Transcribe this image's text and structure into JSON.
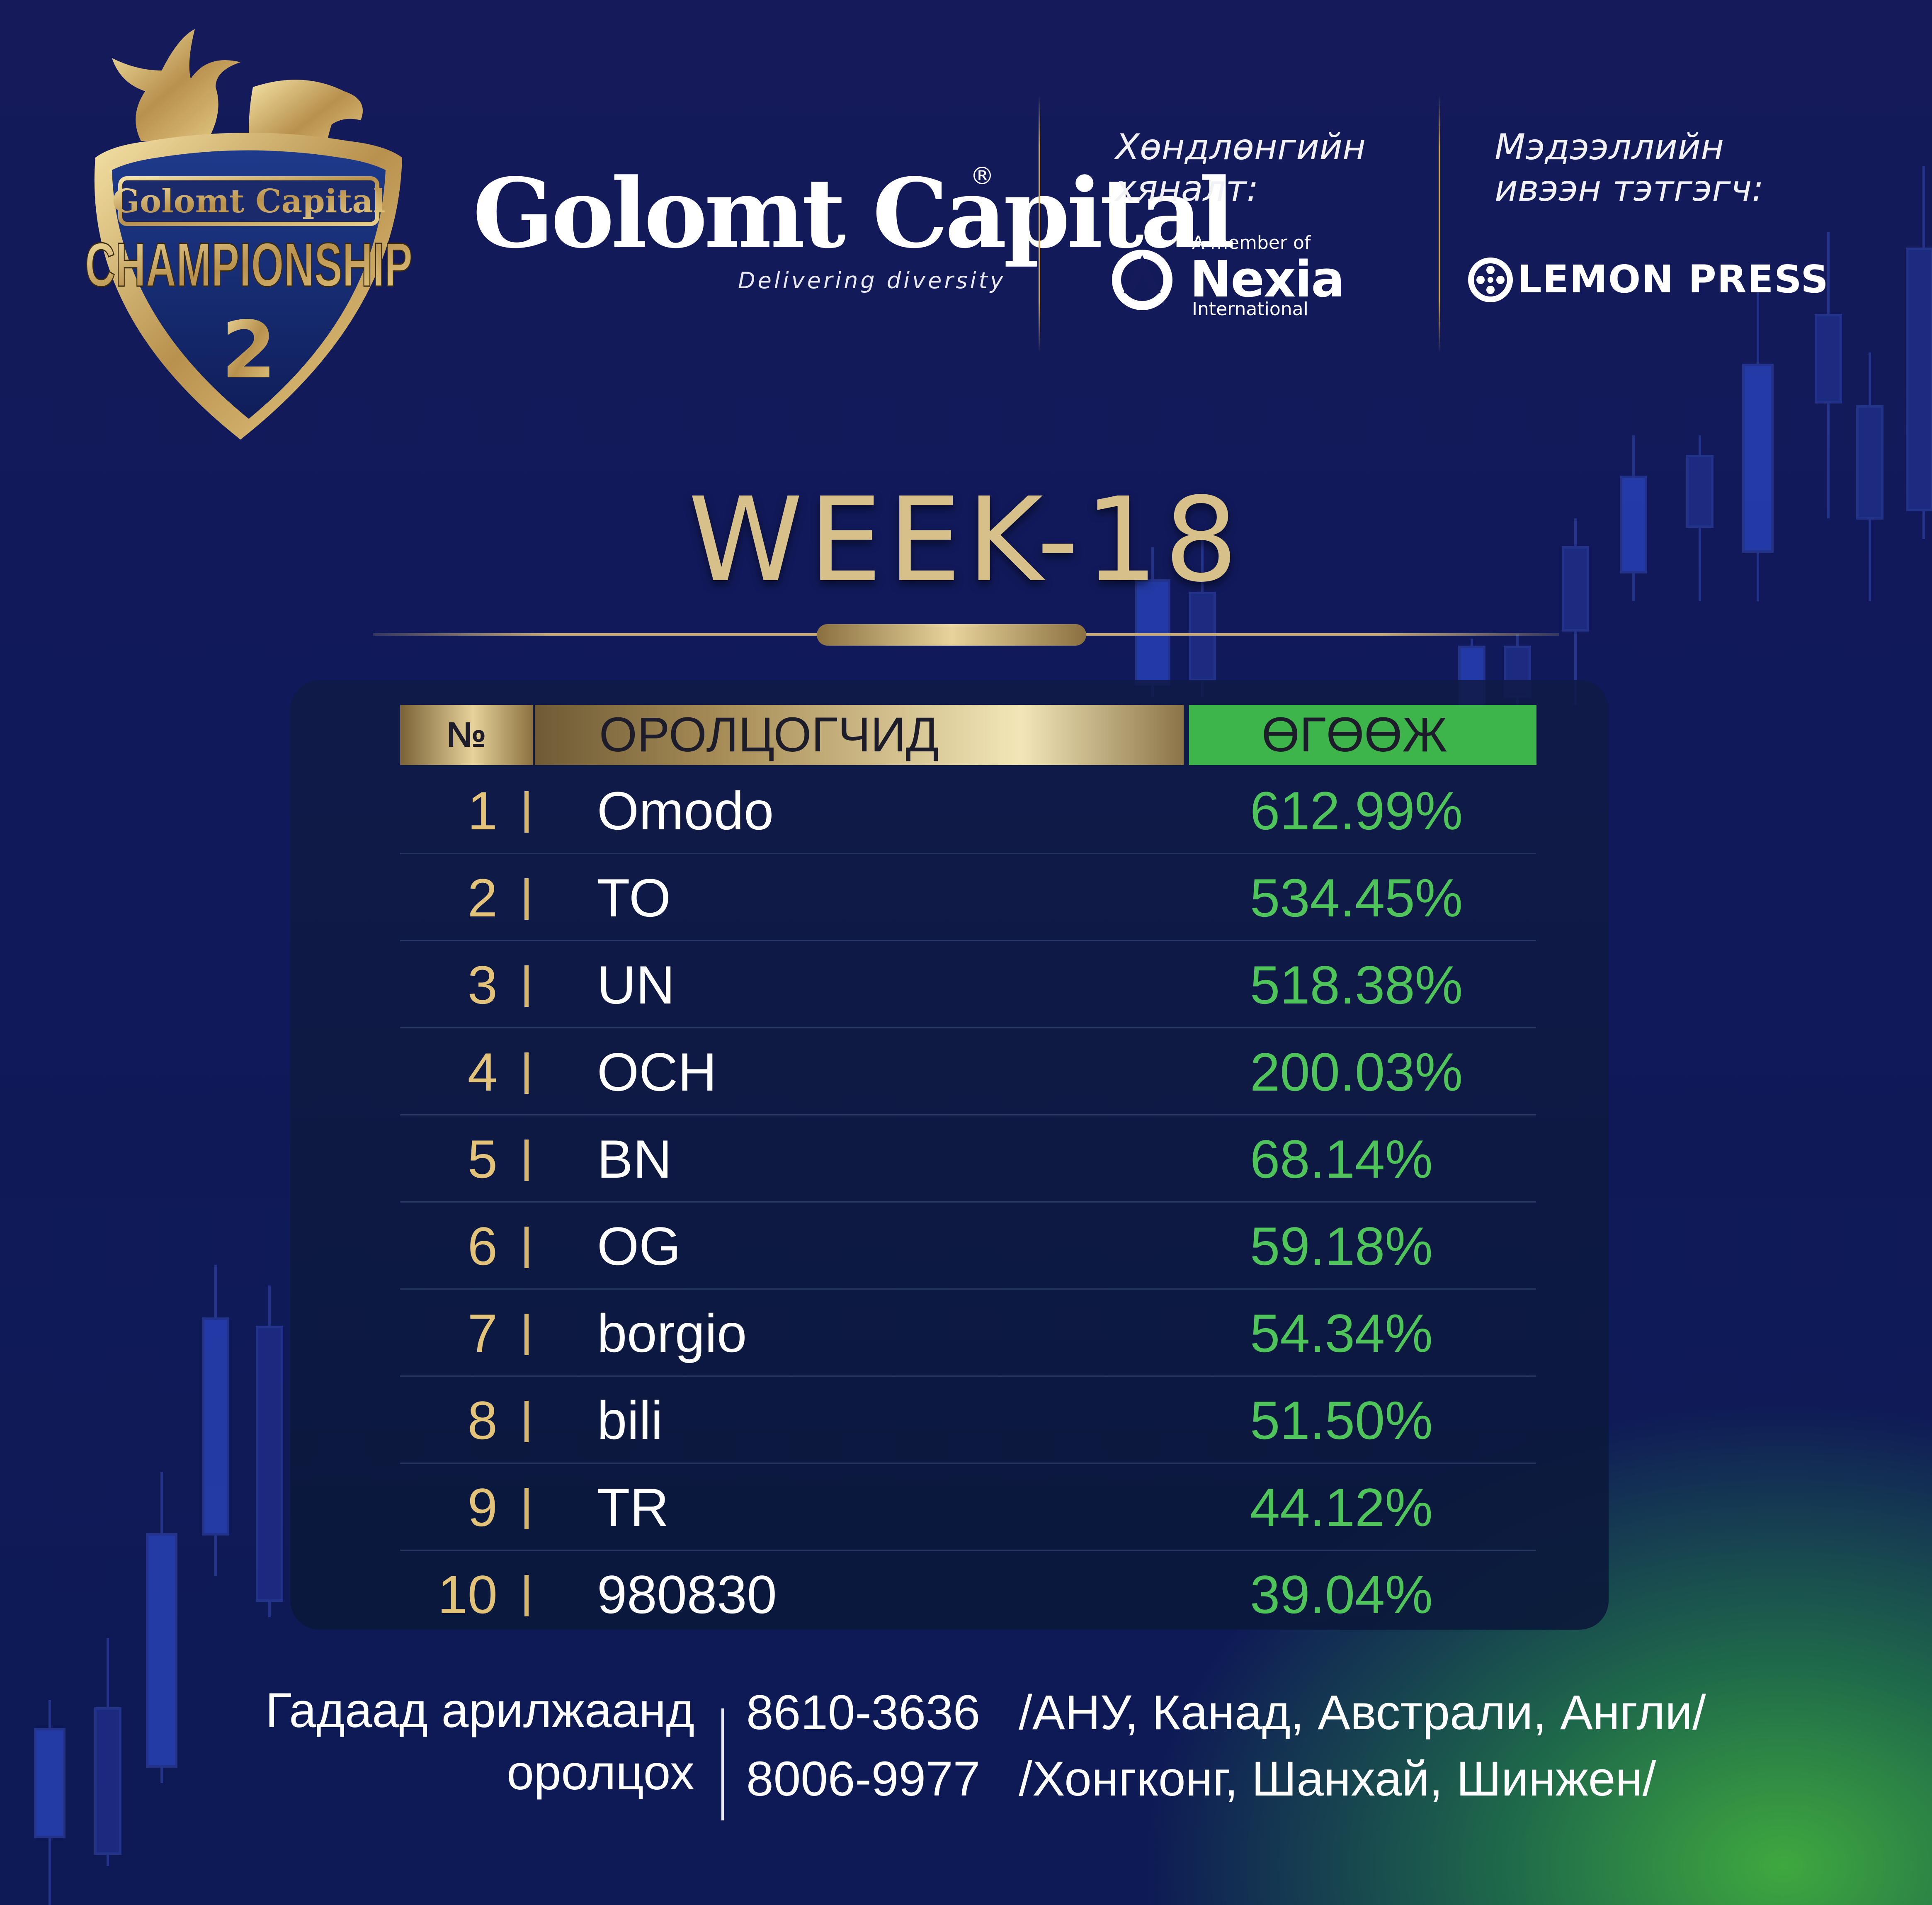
{
  "emblem": {
    "top_text": "Golomt Capital",
    "main_text": "CHAMPIONSHIP",
    "number": "2"
  },
  "brand": {
    "name": "Golomt Capital",
    "registered": "®",
    "tagline": "Delivering diversity"
  },
  "sponsors": {
    "audit": {
      "label_line1": "Хөндлөнгийн",
      "label_line2": "хяналт:",
      "member_text": "A member of",
      "name": "Nexia",
      "sub": "International"
    },
    "media": {
      "label_line1": "Мэдээллийн",
      "label_line2": "ивээн тэтгэгч:",
      "name": "LEMON PRESS"
    }
  },
  "colors": {
    "gold": "#d8c08a",
    "green": "#3db54a",
    "navy": "#141a5a"
  },
  "week_title": "WEEK-18",
  "table": {
    "headers": {
      "rank": "№",
      "name": "ОРОЛЦОГЧИД",
      "return": "ӨГӨӨЖ"
    },
    "rows": [
      {
        "rank": "1",
        "name": "Omodo",
        "return": "612.99%"
      },
      {
        "rank": "2",
        "name": "TO",
        "return": "534.45%"
      },
      {
        "rank": "3",
        "name": "UN",
        "return": "518.38%"
      },
      {
        "rank": "4",
        "name": "OCH",
        "return": "200.03%"
      },
      {
        "rank": "5",
        "name": "BN",
        "return": "68.14%"
      },
      {
        "rank": "6",
        "name": "OG",
        "return": "59.18%"
      },
      {
        "rank": "7",
        "name": "borgio",
        "return": "54.34%"
      },
      {
        "rank": "8",
        "name": "bili",
        "return": "51.50%"
      },
      {
        "rank": "9",
        "name": "TR",
        "return": "44.12%"
      },
      {
        "rank": "10",
        "name": "980830",
        "return": "39.04%"
      }
    ]
  },
  "footer": {
    "label_line1": "Гадаад арилжаанд",
    "label_line2": "оролцох",
    "contacts": [
      {
        "phone": "8610-3636",
        "regions": "/АНУ, Канад, Австрали, Англи/"
      },
      {
        "phone": "8006-9977",
        "regions": "/Хонгконг, Шанхай, Шинжен/"
      }
    ]
  }
}
